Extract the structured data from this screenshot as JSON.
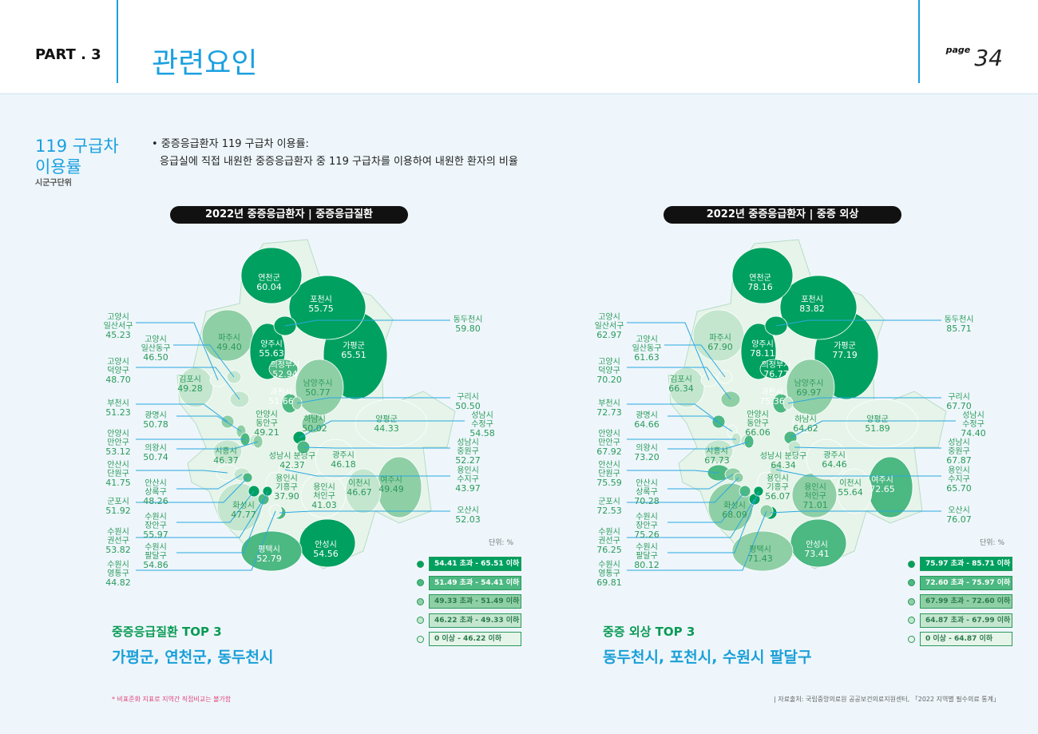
{
  "header": {
    "part": "PART . 3",
    "title": "관련요인",
    "page_word": "page",
    "page_num": "34"
  },
  "section": {
    "title_line1": "119 구급차",
    "title_line2": "이용률",
    "subtitle": "시군구단위",
    "desc_line1": "• 중증응급환자 119 구급차 이용률:",
    "desc_line2": "응급실에 직접 내원한 중증응급환자 중 119 구급차를 이용하여 내원한 환자의 비율"
  },
  "colors": {
    "tier5": "#00a060",
    "tier4": "#4cb882",
    "tier3": "#8fcfa6",
    "tier2": "#c4e6cf",
    "tier1": "#e6f4ea",
    "leader": "#2aa8e0"
  },
  "regions": [
    "연천군",
    "포천시",
    "동두천시",
    "양주시",
    "가평군",
    "의정부시",
    "남양주시",
    "파주시",
    "김포시",
    "고양시 일산서구",
    "고양시 일산동구",
    "고양시 덕양구",
    "과천시",
    "구리시",
    "부천시",
    "광명시",
    "안양시 동안구",
    "하남시",
    "양평군",
    "성남시 수정구",
    "안양시 만안구",
    "의왕시",
    "시흥시",
    "성남시 분당구",
    "광주시",
    "성남시 중원구",
    "안산시 단원구",
    "안산시 상록구",
    "용인시 기흥구",
    "용인시 수지구",
    "용인시 처인구",
    "이천시",
    "여주시",
    "군포시",
    "화성시",
    "오산시",
    "수원시 장안구",
    "수원시 권선구",
    "수원시 팔달구",
    "수원시 영통구",
    "평택시",
    "안성시"
  ],
  "maps": [
    {
      "title": "2022년 중증응급환자 | 중증응급질환",
      "unit": "단위: %",
      "values": [
        "60.04",
        "55.75",
        "59.80",
        "55.63",
        "65.51",
        "52.94",
        "50.77",
        "49.40",
        "49.28",
        "45.23",
        "46.50",
        "48.70",
        "51.66",
        "50.50",
        "51.23",
        "50.78",
        "49.21",
        "50.02",
        "44.33",
        "54.58",
        "53.12",
        "50.74",
        "46.37",
        "42.37",
        "46.18",
        "52.27",
        "41.75",
        "48.26",
        "37.90",
        "43.97",
        "41.03",
        "46.67",
        "49.49",
        "51.92",
        "47.77",
        "52.03",
        "55.97",
        "53.82",
        "54.86",
        "44.82",
        "52.79",
        "54.56"
      ],
      "thresholds": [
        46.22,
        49.33,
        51.49,
        54.41
      ],
      "legend": [
        "54.41 초과 - 65.51 이하",
        "51.49 초과 - 54.41 이하",
        "49.33 초과 - 51.49 이하",
        "46.22 초과 - 49.33 이하",
        "0 이상 - 46.22 이하"
      ],
      "top3_title": "중증응급질환 TOP 3",
      "top3": "가평군, 연천군, 동두천시"
    },
    {
      "title": "2022년 중증응급환자 | 중증 외상",
      "unit": "단위: %",
      "values": [
        "78.16",
        "83.82",
        "85.71",
        "78.11",
        "77.19",
        "76.77",
        "69.97",
        "67.90",
        "66.34",
        "62.97",
        "61.63",
        "70.20",
        "75.36",
        "67.70",
        "72.73",
        "64.66",
        "66.06",
        "64.62",
        "51.89",
        "74.40",
        "67.92",
        "73.20",
        "67.73",
        "64.34",
        "64.46",
        "67.87",
        "75.59",
        "70.28",
        "56.07",
        "65.70",
        "71.01",
        "55.64",
        "72.65",
        "72.53",
        "68.09",
        "76.07",
        "75.26",
        "76.25",
        "80.12",
        "69.81",
        "71.43",
        "73.41"
      ],
      "thresholds": [
        64.87,
        67.99,
        72.6,
        75.97
      ],
      "legend": [
        "75.97 초과 - 85.71 이하",
        "72.60 초과 - 75.97 이하",
        "67.99 초과 - 72.60 이하",
        "64.87 초과 - 67.99 이하",
        "0 이상 - 64.87 이하"
      ],
      "top3_title": "중증 외상 TOP 3",
      "top3": "동두천시, 포천시, 수원시 팔달구"
    }
  ],
  "footer": {
    "note": "* 비표준화 지표로 지역간 직접비교는 불가함",
    "source": "| 자료출처: 국립중앙의료원 공공보건의료지원센터, 「2022 지역별 필수의료 통계」"
  }
}
